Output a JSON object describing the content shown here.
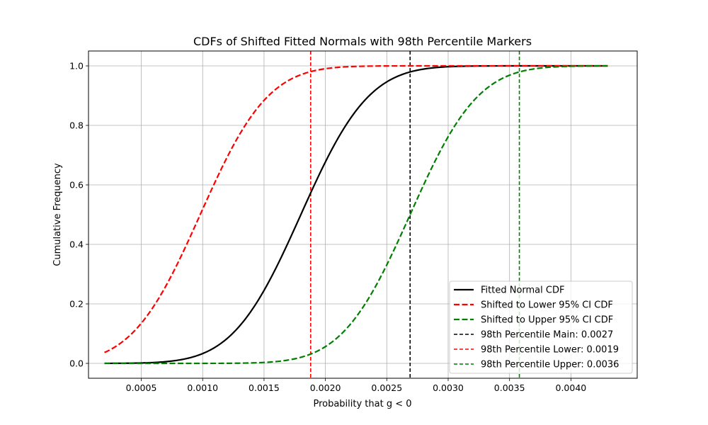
{
  "chart_data": {
    "type": "line",
    "title": "CDFs of Shifted Fitted Normals with 98th Percentile Markers",
    "xlabel": "Probability that g < 0",
    "ylabel": "Cumulative Frequency",
    "xlim": [
      7e-05,
      0.00454
    ],
    "ylim": [
      -0.05,
      1.05
    ],
    "x_range": [
      0.0002,
      0.0043
    ],
    "xticks": [
      0.0005,
      0.001,
      0.0015,
      0.002,
      0.0025,
      0.003,
      0.0035,
      0.004
    ],
    "xtick_labels": [
      "0.0005",
      "0.0010",
      "0.0015",
      "0.0020",
      "0.0025",
      "0.0030",
      "0.0035",
      "0.0040"
    ],
    "yticks": [
      0.0,
      0.2,
      0.4,
      0.6,
      0.8,
      1.0
    ],
    "ytick_labels": [
      "0.0",
      "0.2",
      "0.4",
      "0.6",
      "0.8",
      "1.0"
    ],
    "grid": true,
    "legend_position": "lower right",
    "series": [
      {
        "name": "Fitted Normal CDF",
        "kind": "normal_cdf",
        "mean": 0.0018,
        "sd": 0.000435,
        "color": "#000000",
        "dashed": false
      },
      {
        "name": "Shifted to Lower 95% CI CDF",
        "kind": "normal_cdf",
        "mean": 0.00098,
        "sd": 0.000435,
        "color": "#ff0000",
        "dashed": true
      },
      {
        "name": "Shifted to Upper 95% CI CDF",
        "kind": "normal_cdf",
        "mean": 0.00269,
        "sd": 0.000435,
        "color": "#008000",
        "dashed": true
      }
    ],
    "vlines": [
      {
        "name": "98th Percentile Main: 0.0027",
        "x": 0.00269,
        "color": "#000000"
      },
      {
        "name": "98th Percentile Lower: 0.0019",
        "x": 0.00188,
        "color": "#ff0000"
      },
      {
        "name": "98th Percentile Upper: 0.0036",
        "x": 0.00358,
        "color": "#008000"
      }
    ]
  }
}
